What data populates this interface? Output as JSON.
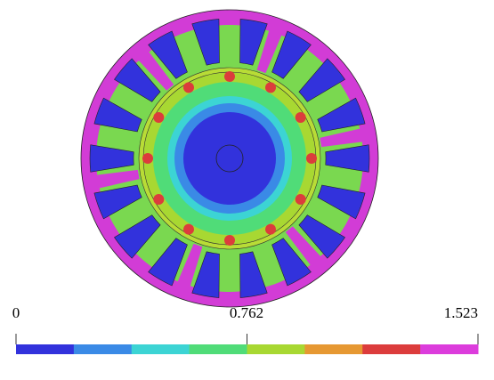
{
  "colorbar": {
    "labels": [
      "0",
      "0.762",
      "1.523"
    ],
    "colors": [
      "#3232dc",
      "#3a8ae6",
      "#3cd4d4",
      "#50dc78",
      "#a8d832",
      "#e69832",
      "#dc3c3c",
      "#dc3cdc"
    ]
  }
}
